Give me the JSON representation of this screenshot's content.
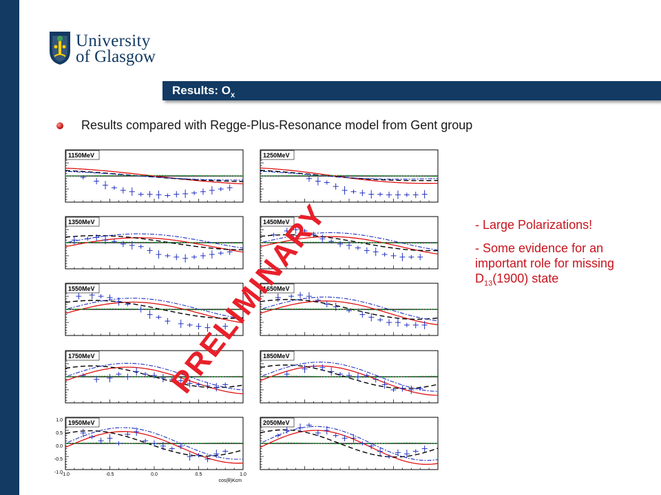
{
  "branding": {
    "line1": "University",
    "line2": "of Glasgow",
    "primary_color": "#123a63"
  },
  "header": {
    "title_main": "Results: O",
    "title_sub": "x"
  },
  "bullet": {
    "text": "Results compared with Regge-Plus-Resonance  model from Gent group"
  },
  "notes": {
    "line1": "- Large Polarizations!",
    "line2_part1": "- Some evidence for an important role for missing D",
    "line2_sub": "13",
    "line2_part2": "(1900) state",
    "color": "#c8141e"
  },
  "watermark": "PRELIMINARY",
  "chart_data": {
    "type": "scatter",
    "panels": [
      "1150MeV",
      "1250MeV",
      "1350MeV",
      "1450MeV",
      "1550MeV",
      "1650MeV",
      "1750MeV",
      "1850MeV",
      "1950MeV",
      "2050MeV"
    ],
    "xlim": [
      -1.0,
      1.0
    ],
    "ylim": [
      -1.0,
      1.0
    ],
    "x_ticks": [
      "-1.0",
      "-0.5",
      "0.0",
      "0.5",
      "1.0"
    ],
    "y_ticks": [
      "1.0",
      "0.5",
      "0.0",
      "-0.5",
      "-1.0"
    ],
    "xlabel": "cos(θ)Kcm",
    "series_colors": {
      "data": "#2030c0",
      "model_1": "#e01010",
      "model_2": "#000000",
      "model_3": "#2030c0",
      "model_4": "#10a020"
    },
    "data": [
      {
        "energy": "1150MeV",
        "x": [
          -0.8,
          -0.65,
          -0.55,
          -0.45,
          -0.35,
          -0.25,
          -0.15,
          -0.05,
          0.05,
          0.15,
          0.25,
          0.35,
          0.45,
          0.55,
          0.65,
          0.75,
          0.85
        ],
        "y": [
          -0.05,
          -0.2,
          -0.35,
          -0.45,
          -0.55,
          -0.6,
          -0.7,
          -0.7,
          -0.72,
          -0.75,
          -0.7,
          -0.68,
          -0.65,
          -0.6,
          -0.55,
          -0.5,
          -0.45
        ]
      },
      {
        "energy": "1250MeV",
        "x": [
          -0.45,
          -0.35,
          -0.25,
          -0.15,
          -0.05,
          0.05,
          0.15,
          0.25,
          0.35,
          0.45,
          0.55,
          0.65,
          0.75,
          0.85
        ],
        "y": [
          -0.1,
          -0.2,
          -0.25,
          -0.4,
          -0.55,
          -0.6,
          -0.65,
          -0.7,
          -0.7,
          -0.72,
          -0.72,
          -0.72,
          -0.72,
          -0.7
        ]
      },
      {
        "energy": "1350MeV",
        "x": [
          -0.9,
          -0.75,
          -0.65,
          -0.55,
          -0.45,
          -0.35,
          -0.25,
          -0.15,
          -0.05,
          0.05,
          0.15,
          0.25,
          0.35,
          0.45,
          0.55,
          0.65,
          0.75,
          0.85
        ],
        "y": [
          0.1,
          0.15,
          0.2,
          0.1,
          0.05,
          -0.05,
          -0.1,
          -0.15,
          -0.3,
          -0.45,
          -0.5,
          -0.55,
          -0.6,
          -0.55,
          -0.5,
          -0.45,
          -0.4,
          -0.35
        ]
      },
      {
        "energy": "1450MeV",
        "x": [
          -0.85,
          -0.7,
          -0.6,
          -0.5,
          -0.4,
          -0.3,
          -0.2,
          -0.1,
          0.0,
          0.1,
          0.2,
          0.3,
          0.4,
          0.5,
          0.6,
          0.7,
          0.8
        ],
        "y": [
          0.3,
          0.45,
          0.5,
          0.45,
          0.3,
          0.15,
          0.05,
          -0.05,
          -0.1,
          -0.2,
          -0.3,
          -0.35,
          -0.45,
          -0.5,
          -0.55,
          -0.55,
          -0.55
        ]
      },
      {
        "energy": "1550MeV",
        "x": [
          -0.85,
          -0.7,
          -0.6,
          -0.5,
          -0.4,
          -0.3,
          -0.15,
          -0.05,
          0.05,
          0.15,
          0.3,
          0.4,
          0.5,
          0.6,
          0.7,
          0.8
        ],
        "y": [
          0.5,
          0.55,
          0.5,
          0.45,
          0.3,
          0.2,
          0.0,
          -0.2,
          -0.3,
          -0.45,
          -0.55,
          -0.6,
          -0.65,
          -0.7,
          -0.7,
          -0.65
        ]
      },
      {
        "energy": "1650MeV",
        "x": [
          -0.8,
          -0.65,
          -0.55,
          -0.45,
          -0.35,
          -0.25,
          -0.15,
          0.0,
          0.15,
          0.25,
          0.35,
          0.45,
          0.55,
          0.65,
          0.75,
          0.85
        ],
        "y": [
          0.45,
          0.5,
          0.55,
          0.5,
          0.35,
          0.2,
          0.1,
          -0.05,
          -0.2,
          -0.3,
          -0.4,
          -0.5,
          -0.5,
          -0.6,
          -0.6,
          -0.6
        ]
      },
      {
        "energy": "1750MeV",
        "x": [
          -0.8,
          -0.65,
          -0.5,
          -0.4,
          -0.3,
          -0.2,
          -0.1,
          0.0,
          0.1,
          0.2,
          0.3,
          0.4,
          0.5,
          0.6,
          0.7,
          0.8
        ],
        "y": [
          0.05,
          -0.1,
          -0.05,
          0.1,
          0.0,
          0.2,
          0.1,
          0.05,
          -0.05,
          -0.1,
          -0.15,
          -0.25,
          -0.3,
          -0.35,
          -0.4,
          -0.3
        ]
      },
      {
        "energy": "1850MeV",
        "x": [
          -0.7,
          -0.5,
          -0.4,
          -0.3,
          -0.2,
          -0.1,
          0.0,
          0.1,
          0.2,
          0.3,
          0.4,
          0.5,
          0.6,
          0.7,
          0.8
        ],
        "y": [
          0.1,
          0.3,
          0.4,
          0.35,
          0.2,
          0.1,
          0.05,
          0.0,
          0.05,
          -0.1,
          -0.3,
          -0.5,
          -0.45,
          -0.5,
          -0.45
        ]
      },
      {
        "energy": "1950MeV",
        "x": [
          -0.8,
          -0.7,
          -0.6,
          -0.5,
          -0.4,
          -0.3,
          -0.2,
          -0.1,
          0.0,
          0.1,
          0.2,
          0.3,
          0.4,
          0.5,
          0.6,
          0.7,
          0.8
        ],
        "y": [
          0.4,
          0.25,
          0.1,
          0.2,
          0.0,
          0.35,
          0.45,
          0.1,
          0.0,
          -0.1,
          -0.2,
          -0.1,
          -0.5,
          -0.45,
          -0.6,
          -0.4,
          -0.3
        ]
      },
      {
        "energy": "2050MeV",
        "x": [
          -0.8,
          -0.7,
          -0.55,
          -0.45,
          -0.35,
          -0.25,
          -0.15,
          -0.05,
          0.05,
          0.15,
          0.25,
          0.35,
          0.45,
          0.55,
          0.65,
          0.75,
          0.85
        ],
        "y": [
          0.3,
          0.5,
          0.6,
          0.7,
          0.4,
          0.5,
          0.3,
          0.2,
          0.2,
          0.0,
          -0.1,
          -0.3,
          -0.5,
          -0.35,
          -0.4,
          -0.3,
          -0.2
        ]
      }
    ]
  }
}
